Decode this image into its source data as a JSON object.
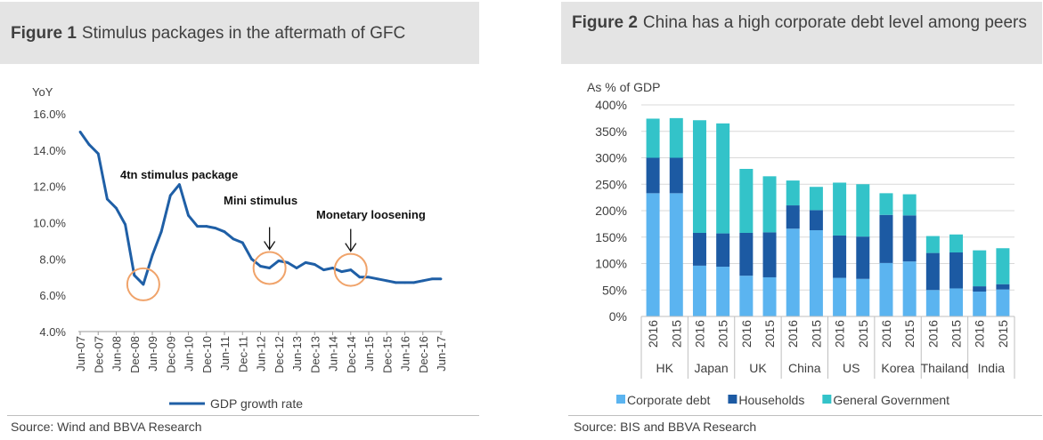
{
  "figure1": {
    "number": "Figure 1",
    "title": "Stimulus packages in the aftermath of GFC",
    "source": "Source: Wind and BBVA Research",
    "chart_data": {
      "type": "line",
      "ylabel": "YoY",
      "ylim": [
        4,
        16
      ],
      "yticks": [
        "4.0%",
        "6.0%",
        "8.0%",
        "10.0%",
        "12.0%",
        "14.0%",
        "16.0%"
      ],
      "xticks": [
        "Jun-07",
        "Dec-07",
        "Jun-08",
        "Dec-08",
        "Jun-09",
        "Dec-09",
        "Jun-10",
        "Dec-10",
        "Jun-11",
        "Dec-11",
        "Jun-12",
        "Dec-12",
        "Jun-13",
        "Dec-13",
        "Jun-14",
        "Dec-14",
        "Jun-15",
        "Dec-15",
        "Jun-16",
        "Dec-16",
        "Jun-17"
      ],
      "legend": "GDP growth rate",
      "legend_position": "bottom",
      "color": "#1f5fa6",
      "series": [
        {
          "name": "GDP growth rate",
          "x": [
            "2007Q2",
            "2007Q3",
            "2007Q4",
            "2008Q1",
            "2008Q2",
            "2008Q3",
            "2008Q4",
            "2009Q1",
            "2009Q2",
            "2009Q3",
            "2009Q4",
            "2010Q1",
            "2010Q2",
            "2010Q3",
            "2010Q4",
            "2011Q1",
            "2011Q2",
            "2011Q3",
            "2011Q4",
            "2012Q1",
            "2012Q2",
            "2012Q3",
            "2012Q4",
            "2013Q1",
            "2013Q2",
            "2013Q3",
            "2013Q4",
            "2014Q1",
            "2014Q2",
            "2014Q3",
            "2014Q4",
            "2015Q1",
            "2015Q2",
            "2015Q3",
            "2015Q4",
            "2016Q1",
            "2016Q2",
            "2016Q3",
            "2016Q4",
            "2017Q1",
            "2017Q2"
          ],
          "values": [
            15.0,
            14.3,
            13.8,
            11.3,
            10.8,
            9.9,
            7.1,
            6.6,
            8.2,
            9.5,
            11.5,
            12.1,
            10.4,
            9.8,
            9.8,
            9.7,
            9.5,
            9.1,
            8.9,
            8.0,
            7.6,
            7.5,
            7.9,
            7.8,
            7.5,
            7.8,
            7.7,
            7.4,
            7.5,
            7.3,
            7.4,
            7.0,
            7.0,
            6.9,
            6.8,
            6.7,
            6.7,
            6.7,
            6.8,
            6.9,
            6.9
          ]
        }
      ],
      "annotations": [
        {
          "text": "4tn stimulus package",
          "circle_at": "2009Q1",
          "arrow": false
        },
        {
          "text": "Mini stimulus",
          "circle_at": "2012Q3",
          "arrow": true
        },
        {
          "text": "Monetary loosening",
          "circle_at": "2014Q4",
          "arrow": true
        }
      ],
      "circle_color": "#f0a36a"
    }
  },
  "figure2": {
    "number": "Figure 2",
    "title": "China has a high corporate debt level among peers",
    "source": "Source: BIS and BBVA Research",
    "chart_data": {
      "type": "bar",
      "stacked": true,
      "ylabel": "As % of GDP",
      "ylim": [
        0,
        400
      ],
      "yticks": [
        "0%",
        "50%",
        "100%",
        "150%",
        "200%",
        "250%",
        "300%",
        "350%",
        "400%"
      ],
      "groups": [
        "HK",
        "Japan",
        "UK",
        "China",
        "US",
        "Korea",
        "Thailand",
        "India"
      ],
      "categories": [
        "2016",
        "2015",
        "2016",
        "2015",
        "2016",
        "2015",
        "2016",
        "2015",
        "2016",
        "2015",
        "2016",
        "2015",
        "2016",
        "2015",
        "2016",
        "2015"
      ],
      "grid": true,
      "legend_position": "bottom",
      "series": [
        {
          "name": "Corporate debt",
          "color": "#5bb4f0",
          "values": [
            233,
            233,
            96,
            94,
            77,
            74,
            166,
            163,
            73,
            71,
            101,
            104,
            50,
            53,
            47,
            51
          ]
        },
        {
          "name": "Households",
          "color": "#1c5aa3",
          "values": [
            67,
            67,
            62,
            63,
            81,
            85,
            44,
            38,
            80,
            80,
            91,
            87,
            70,
            68,
            10,
            10
          ]
        },
        {
          "name": "General Government",
          "color": "#33c3c9",
          "values": [
            74,
            75,
            213,
            208,
            121,
            106,
            47,
            44,
            100,
            99,
            41,
            40,
            32,
            34,
            68,
            68
          ]
        }
      ]
    }
  }
}
